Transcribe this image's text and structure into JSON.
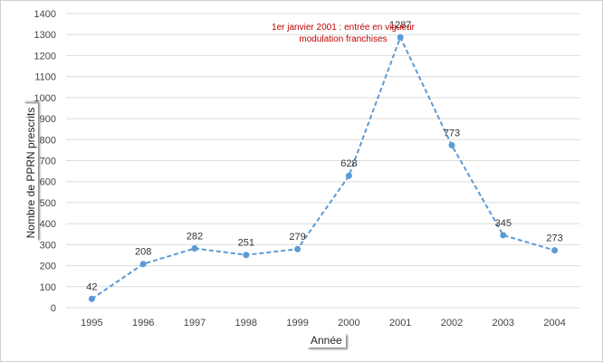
{
  "chart_data": {
    "type": "line",
    "x": [
      "1995",
      "1996",
      "1997",
      "1998",
      "1999",
      "2000",
      "2001",
      "2002",
      "2003",
      "2004"
    ],
    "series": [
      {
        "values": [
          42,
          208,
          282,
          251,
          279,
          628,
          1287,
          773,
          345,
          273
        ]
      }
    ],
    "data_labels": [
      "42",
      "208",
      "282",
      "251",
      "279",
      "628",
      "1287",
      "773",
      "345",
      "273"
    ],
    "y_ticks": [
      "0",
      "100",
      "200",
      "300",
      "400",
      "500",
      "600",
      "700",
      "800",
      "900",
      "1000",
      "1100",
      "1200",
      "1300",
      "1400"
    ],
    "xlabel": "Année",
    "ylabel": "Nombre de PPRN prescrits",
    "ylim": [
      0,
      1400
    ],
    "grid": true,
    "annotation": "1er janvier 2001 : entrée en vigueur modulation franchises",
    "colors": {
      "series": "#5b9bd5",
      "annotation": "#c00000"
    }
  }
}
